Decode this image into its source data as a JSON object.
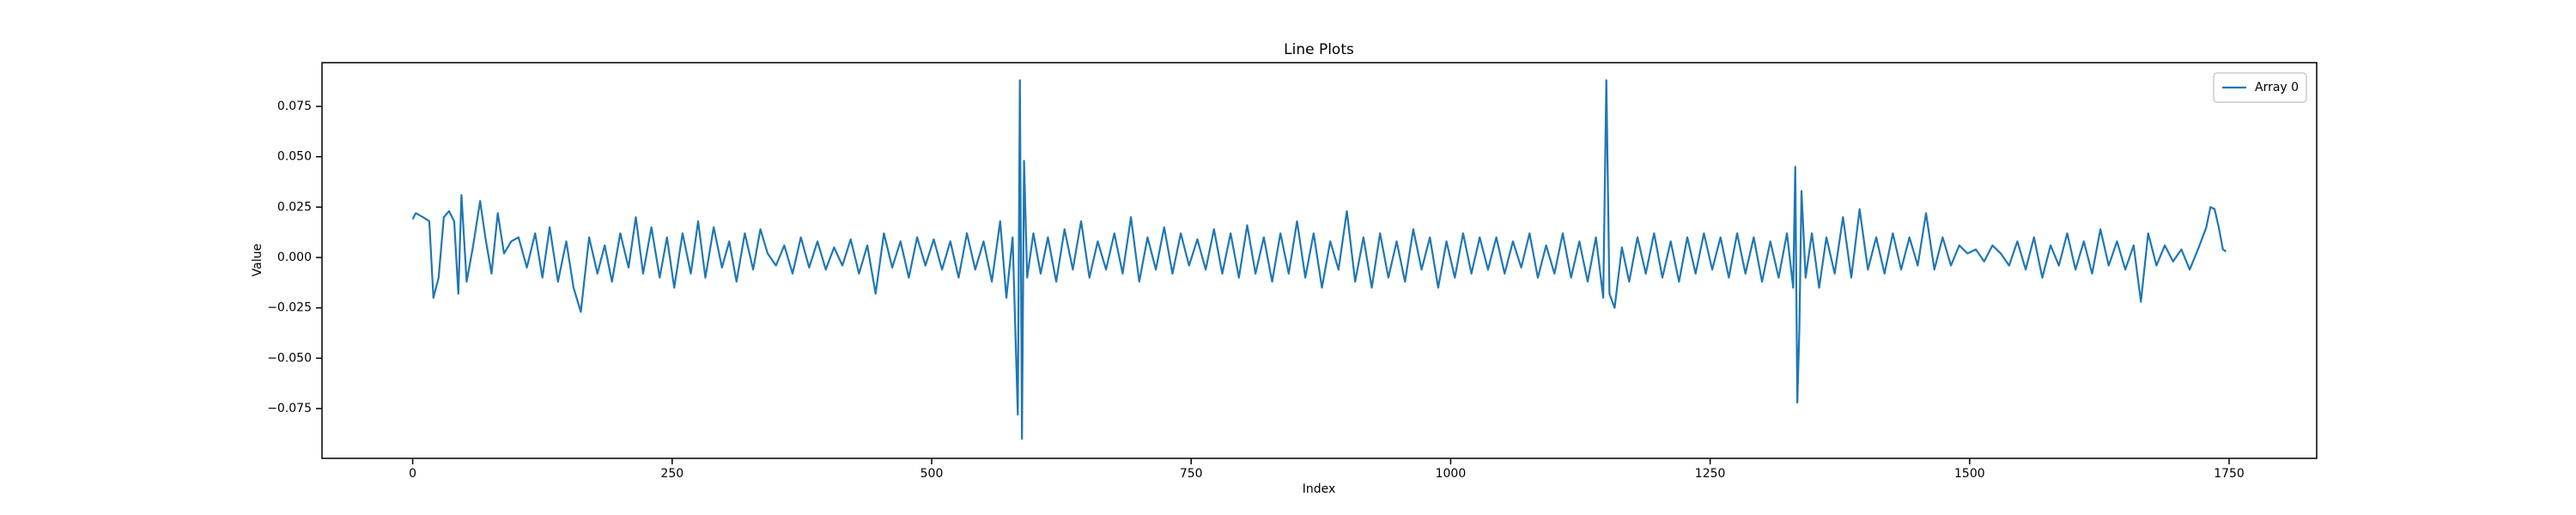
{
  "chart_data": {
    "type": "line",
    "title": "Line Plots",
    "xlabel": "Index",
    "ylabel": "Value",
    "legend": "upper right",
    "grid": false,
    "xlim": [
      -87.35,
      1834.35
    ],
    "ylim": [
      -0.0997,
      0.0967
    ],
    "xticks": [
      0,
      250,
      500,
      750,
      1000,
      1250,
      1500,
      1750
    ],
    "yticks": [
      {
        "value": -0.075,
        "label": "−0.075"
      },
      {
        "value": -0.05,
        "label": "−0.050"
      },
      {
        "value": -0.025,
        "label": "−0.025"
      },
      {
        "value": 0,
        "label": "0.000"
      },
      0.025,
      {
        "value": 0.05,
        "label": "0.050"
      },
      0.075
    ],
    "x": [
      0,
      3,
      10,
      16,
      20,
      25,
      30,
      35,
      40,
      44,
      47,
      52,
      58,
      65,
      70,
      76,
      82,
      88,
      95,
      102,
      110,
      118,
      125,
      132,
      140,
      148,
      155,
      162,
      170,
      178,
      185,
      192,
      200,
      208,
      215,
      222,
      230,
      238,
      245,
      252,
      260,
      268,
      275,
      282,
      290,
      298,
      305,
      312,
      320,
      328,
      335,
      342,
      350,
      358,
      366,
      374,
      382,
      390,
      398,
      406,
      414,
      422,
      430,
      438,
      446,
      454,
      462,
      470,
      478,
      486,
      494,
      502,
      510,
      518,
      526,
      534,
      542,
      550,
      558,
      566,
      572,
      578,
      583,
      585,
      587,
      589,
      592,
      598,
      605,
      612,
      620,
      628,
      636,
      644,
      652,
      660,
      668,
      676,
      684,
      692,
      700,
      708,
      716,
      724,
      732,
      740,
      748,
      756,
      764,
      772,
      780,
      788,
      796,
      804,
      812,
      820,
      828,
      836,
      844,
      852,
      860,
      868,
      876,
      884,
      892,
      900,
      908,
      916,
      924,
      932,
      940,
      948,
      956,
      964,
      972,
      980,
      988,
      996,
      1004,
      1012,
      1020,
      1028,
      1036,
      1044,
      1052,
      1060,
      1068,
      1076,
      1084,
      1092,
      1100,
      1108,
      1116,
      1124,
      1132,
      1140,
      1147,
      1150,
      1153,
      1158,
      1165,
      1172,
      1180,
      1188,
      1196,
      1204,
      1212,
      1220,
      1228,
      1236,
      1244,
      1252,
      1260,
      1268,
      1276,
      1284,
      1292,
      1300,
      1308,
      1316,
      1324,
      1330,
      1332,
      1334,
      1336,
      1338,
      1342,
      1348,
      1355,
      1362,
      1370,
      1378,
      1386,
      1394,
      1402,
      1410,
      1418,
      1426,
      1434,
      1442,
      1450,
      1458,
      1466,
      1474,
      1482,
      1490,
      1498,
      1506,
      1514,
      1522,
      1530,
      1538,
      1546,
      1554,
      1562,
      1570,
      1578,
      1586,
      1594,
      1602,
      1610,
      1618,
      1626,
      1634,
      1642,
      1650,
      1658,
      1665,
      1672,
      1680,
      1688,
      1696,
      1704,
      1712,
      1720,
      1728,
      1732,
      1736,
      1740,
      1744,
      1747
    ],
    "series": [
      {
        "name": "Array 0",
        "color": "#1f77b4",
        "values": [
          0.019,
          0.022,
          0.02,
          0.018,
          -0.02,
          -0.01,
          0.02,
          0.023,
          0.018,
          -0.018,
          0.031,
          -0.012,
          0.005,
          0.028,
          0.01,
          -0.008,
          0.022,
          0.002,
          0.008,
          0.01,
          -0.005,
          0.012,
          -0.01,
          0.015,
          -0.012,
          0.008,
          -0.015,
          -0.027,
          0.01,
          -0.008,
          0.006,
          -0.012,
          0.012,
          -0.005,
          0.02,
          -0.008,
          0.015,
          -0.01,
          0.01,
          -0.015,
          0.012,
          -0.008,
          0.018,
          -0.01,
          0.015,
          -0.005,
          0.008,
          -0.012,
          0.012,
          -0.006,
          0.014,
          0.002,
          -0.004,
          0.006,
          -0.008,
          0.01,
          -0.005,
          0.008,
          -0.006,
          0.005,
          -0.004,
          0.009,
          -0.008,
          0.006,
          -0.018,
          0.012,
          -0.005,
          0.008,
          -0.01,
          0.01,
          -0.004,
          0.009,
          -0.006,
          0.008,
          -0.01,
          0.012,
          -0.006,
          0.008,
          -0.012,
          0.018,
          -0.02,
          0.01,
          -0.078,
          0.088,
          -0.09,
          0.048,
          -0.01,
          0.012,
          -0.008,
          0.01,
          -0.012,
          0.014,
          -0.006,
          0.018,
          -0.01,
          0.008,
          -0.006,
          0.012,
          -0.008,
          0.02,
          -0.012,
          0.01,
          -0.006,
          0.015,
          -0.008,
          0.012,
          -0.004,
          0.009,
          -0.006,
          0.014,
          -0.008,
          0.012,
          -0.01,
          0.016,
          -0.008,
          0.01,
          -0.012,
          0.012,
          -0.008,
          0.018,
          -0.01,
          0.012,
          -0.015,
          0.008,
          -0.006,
          0.023,
          -0.012,
          0.01,
          -0.015,
          0.012,
          -0.01,
          0.008,
          -0.012,
          0.014,
          -0.006,
          0.01,
          -0.015,
          0.008,
          -0.01,
          0.012,
          -0.008,
          0.01,
          -0.006,
          0.01,
          -0.008,
          0.008,
          -0.005,
          0.012,
          -0.01,
          0.006,
          -0.008,
          0.012,
          -0.01,
          0.008,
          -0.012,
          0.01,
          -0.02,
          0.088,
          -0.018,
          -0.025,
          0.005,
          -0.012,
          0.01,
          -0.008,
          0.012,
          -0.01,
          0.008,
          -0.012,
          0.01,
          -0.008,
          0.012,
          -0.006,
          0.01,
          -0.01,
          0.012,
          -0.008,
          0.01,
          -0.012,
          0.008,
          -0.01,
          0.012,
          -0.015,
          0.045,
          -0.072,
          -0.035,
          0.033,
          -0.01,
          0.012,
          -0.015,
          0.01,
          -0.008,
          0.02,
          -0.01,
          0.024,
          -0.006,
          0.01,
          -0.008,
          0.012,
          -0.006,
          0.01,
          -0.004,
          0.022,
          -0.006,
          0.01,
          -0.004,
          0.006,
          0.002,
          0.004,
          -0.002,
          0.006,
          0.002,
          -0.004,
          0.008,
          -0.006,
          0.01,
          -0.01,
          0.006,
          -0.004,
          0.012,
          -0.006,
          0.008,
          -0.008,
          0.014,
          -0.004,
          0.008,
          -0.006,
          0.006,
          -0.022,
          0.012,
          -0.004,
          0.006,
          -0.002,
          0.004,
          -0.006,
          0.004,
          0.015,
          0.025,
          0.024,
          0.015,
          0.004,
          0.003
        ]
      }
    ]
  }
}
